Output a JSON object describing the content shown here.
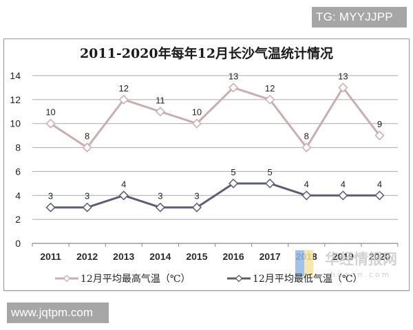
{
  "badges": {
    "top_right": "TG: MYYJJPP",
    "bottom_left": "www.jqtpm.com"
  },
  "watermark": {
    "text": "华经情报网",
    "subtext": "huaon.com",
    "logo_colors": [
      "#8fb8ea",
      "#f3e3a0"
    ]
  },
  "colors": {
    "high_line": "#c9adb0",
    "low_line": "#5c5c74",
    "grid": "#a8a8a8",
    "frame": "#9a9a9a"
  },
  "chart_data": {
    "type": "line",
    "title": "2011-2020年每年12月长沙气温统计情况",
    "xlabel": "",
    "ylabel": "",
    "categories": [
      "2011",
      "2012",
      "2013",
      "2014",
      "2015",
      "2016",
      "2017",
      "2018",
      "2019",
      "2020"
    ],
    "series": [
      {
        "name": "12月平均最高气温（℃）",
        "values": [
          10,
          8,
          12,
          11,
          10,
          13,
          12,
          8,
          13,
          9
        ],
        "color": "#c9adb0",
        "marker": "diamond-open"
      },
      {
        "name": "12月平均最低气温（℃）",
        "values": [
          3,
          3,
          4,
          3,
          3,
          5,
          5,
          4,
          4,
          4
        ],
        "color": "#5c5c74",
        "marker": "diamond-open"
      }
    ],
    "ylim": [
      0,
      14
    ],
    "yticks": [
      0,
      2,
      4,
      6,
      8,
      10,
      12,
      14
    ],
    "grid": true,
    "data_labels": true,
    "legend_position": "bottom"
  }
}
